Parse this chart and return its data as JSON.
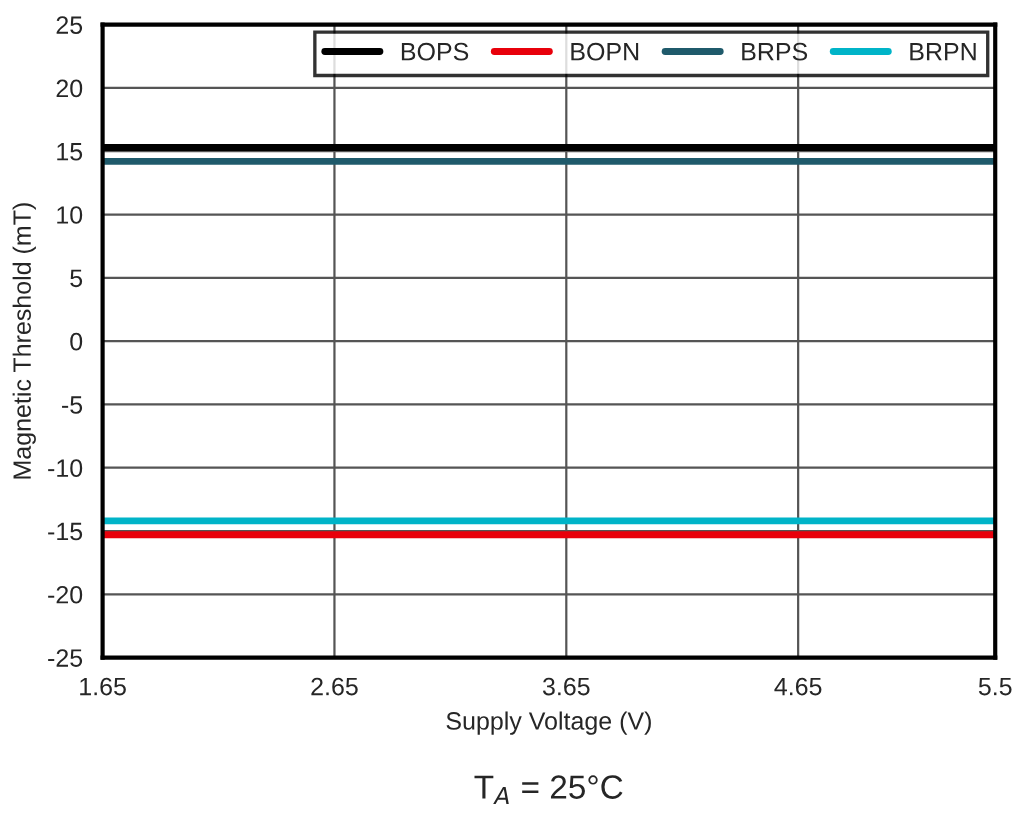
{
  "chart_data": {
    "type": "line",
    "xlabel": "Supply Voltage (V)",
    "ylabel": "Magnetic Threshold (mT)",
    "x": [
      1.65,
      5.5
    ],
    "series": [
      {
        "name": "BOPS",
        "color": "#000000",
        "values": [
          15.3,
          15.3
        ]
      },
      {
        "name": "BOPN",
        "color": "#e8000b",
        "values": [
          -15.3,
          -15.3
        ]
      },
      {
        "name": "BRPS",
        "color": "#1f5a6b",
        "values": [
          14.2,
          14.2
        ]
      },
      {
        "name": "BRPN",
        "color": "#00b4c8",
        "values": [
          -14.2,
          -14.2
        ]
      }
    ],
    "xlim": [
      1.65,
      5.5
    ],
    "xticks": [
      1.65,
      2.65,
      3.65,
      4.65,
      5.5
    ],
    "ylim": [
      -25,
      25
    ],
    "yticks": [
      -25,
      -20,
      -15,
      -10,
      -5,
      0,
      5,
      10,
      15,
      20,
      25
    ],
    "grid": true,
    "legend": "top right",
    "marker": "none",
    "line_style": "solid",
    "annotations": [
      "T$_{A}$ = 25°C"
    ]
  }
}
